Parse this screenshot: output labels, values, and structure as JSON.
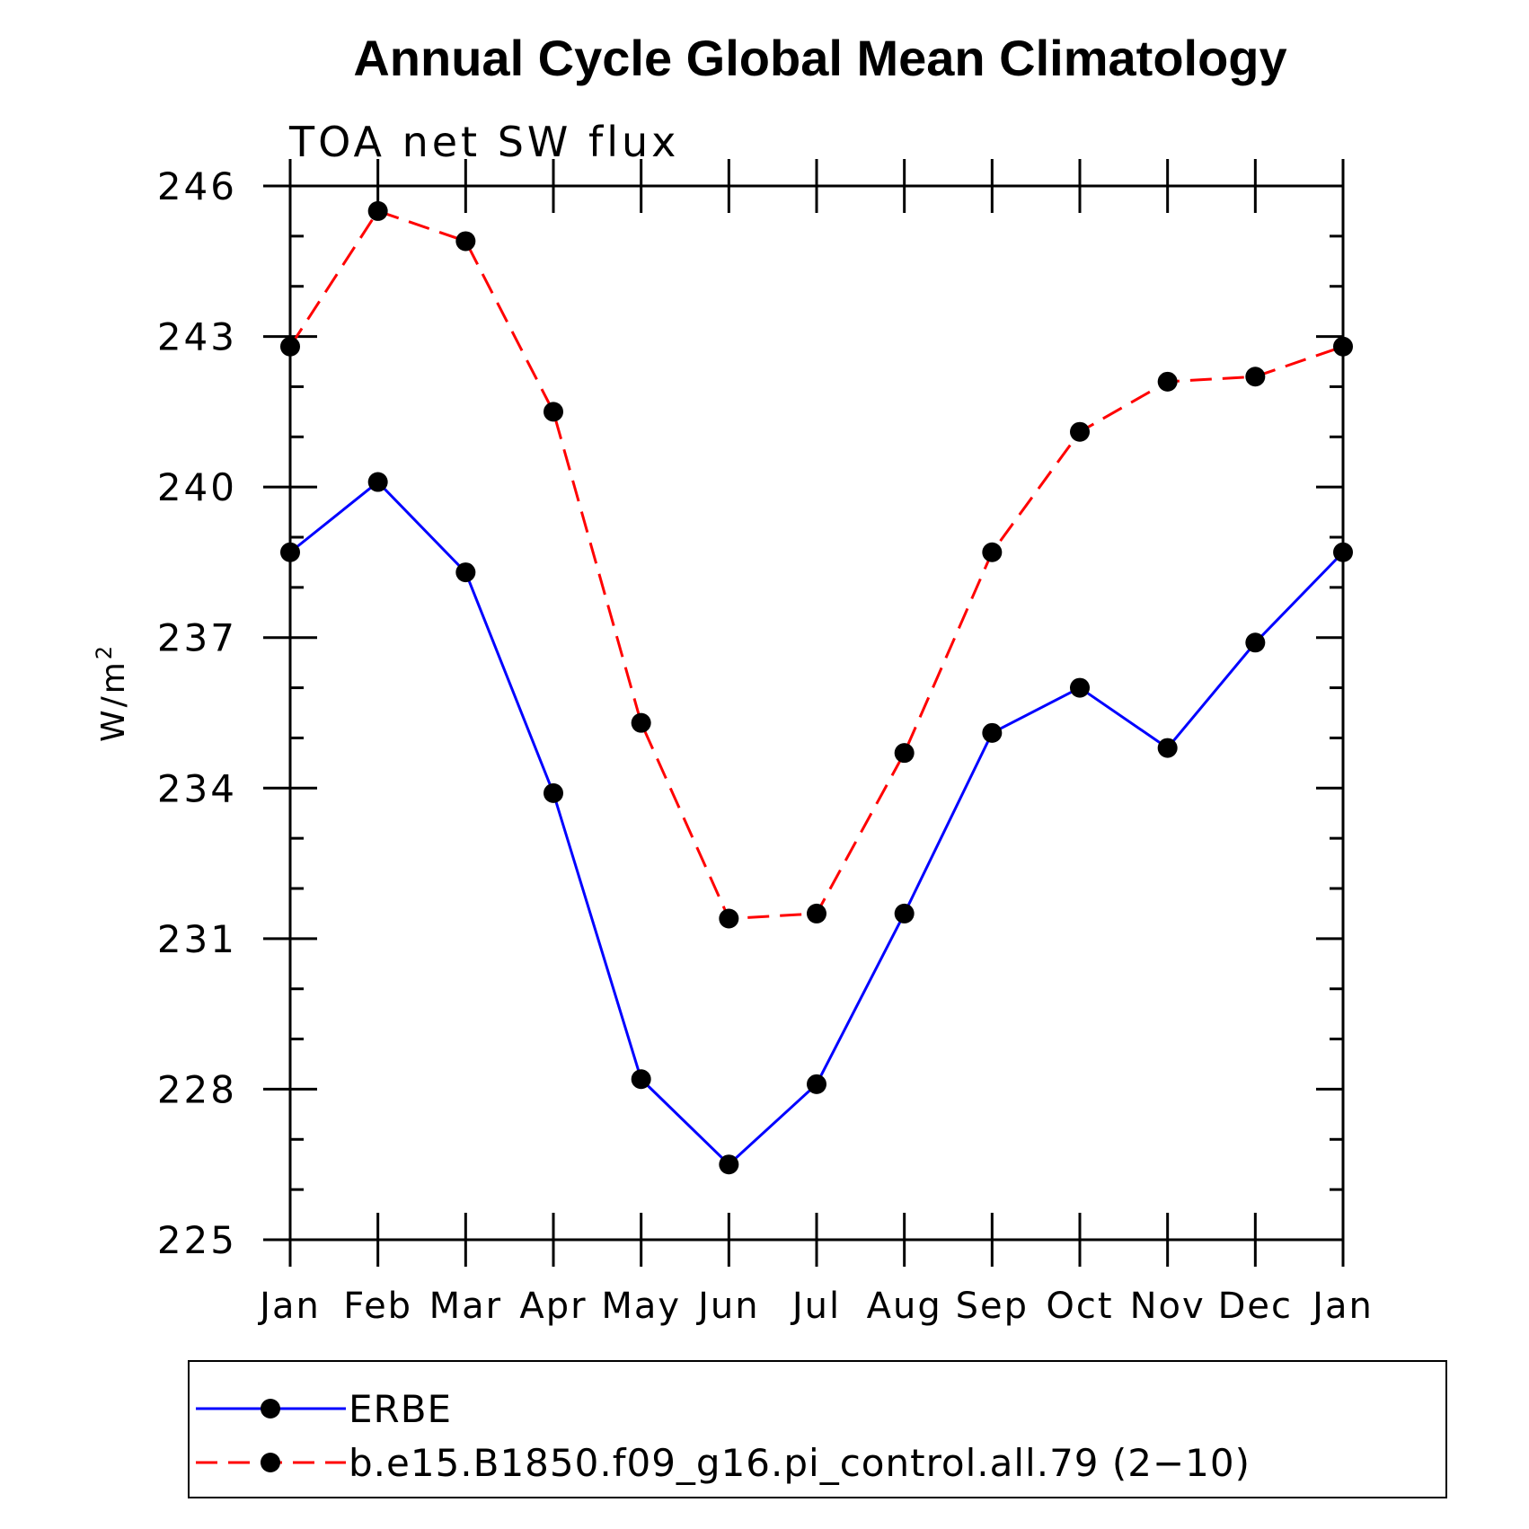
{
  "chart_data": {
    "type": "line",
    "title": "Annual Cycle Global Mean Climatology",
    "subtitle": "TOA net SW flux",
    "ylabel": "W/m",
    "ylabel_superscript": "2",
    "xlabel": "",
    "categories": [
      "Jan",
      "Feb",
      "Mar",
      "Apr",
      "May",
      "Jun",
      "Jul",
      "Aug",
      "Sep",
      "Oct",
      "Nov",
      "Dec",
      "Jan"
    ],
    "ylim": [
      225,
      246
    ],
    "yticks": [
      225,
      228,
      231,
      234,
      237,
      240,
      243,
      246
    ],
    "grid": false,
    "legend_position": "bottom",
    "series": [
      {
        "name": "ERBE",
        "color": "#0000ff",
        "line_style": "solid",
        "marker": "filled-circle",
        "values": [
          238.7,
          240.1,
          238.3,
          233.9,
          228.2,
          226.5,
          228.1,
          231.5,
          235.1,
          236.0,
          234.8,
          236.9,
          238.7
        ]
      },
      {
        "name": "b.e15.B1850.f09_g16.pi_control.all.79 (2−10)",
        "color": "#ff0000",
        "line_style": "dashed",
        "marker": "filled-circle",
        "values": [
          242.8,
          245.5,
          244.9,
          241.5,
          235.3,
          231.4,
          231.5,
          234.7,
          238.7,
          241.1,
          242.1,
          242.2,
          242.8
        ]
      }
    ]
  }
}
